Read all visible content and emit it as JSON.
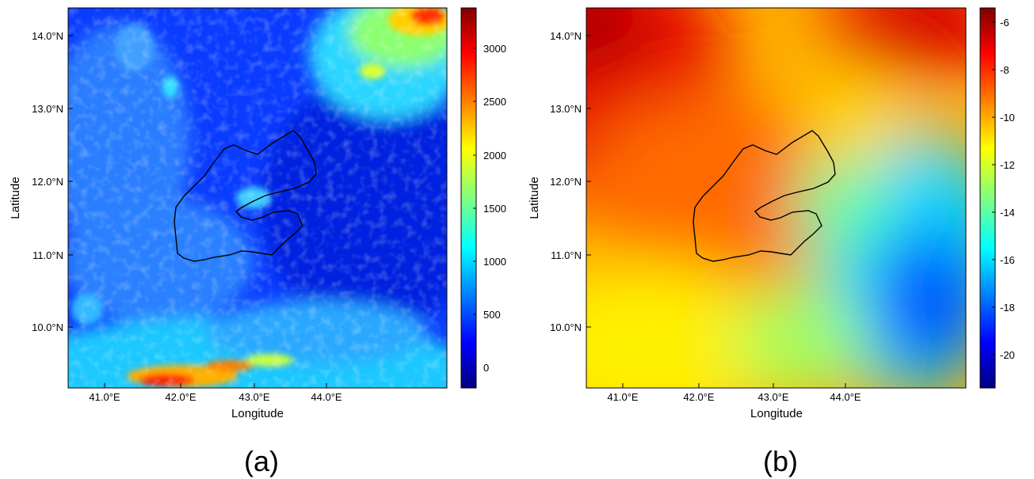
{
  "figure": {
    "panels": [
      {
        "id": "a",
        "label": "(a)",
        "xlabel": "Longitude",
        "ylabel": "Latitude",
        "x_ticks": [
          "41.0°E",
          "42.0°E",
          "43.0°E",
          "44.0°E"
        ],
        "y_ticks": [
          "14.0°N",
          "13.0°N",
          "12.0°N",
          "11.0°N",
          "10.0°N"
        ],
        "colorbar": {
          "ticks": [
            "3000",
            "2500",
            "2000",
            "1500",
            "1000",
            "500",
            "0"
          ],
          "range": [
            -150,
            3400
          ],
          "colormap": "jet"
        }
      },
      {
        "id": "b",
        "label": "(b)",
        "xlabel": "Longitude",
        "ylabel": "Latitude",
        "x_ticks": [
          "41.0°E",
          "42.0°E",
          "43.0°E",
          "44.0°E"
        ],
        "y_ticks": [
          "14.0°N",
          "13.0°N",
          "12.0°N",
          "11.0°N",
          "10.0°N"
        ],
        "colorbar": {
          "ticks": [
            "-6",
            "-8",
            "-10",
            "-12",
            "-14",
            "-16",
            "-18",
            "-20"
          ],
          "range": [
            -21.4,
            -5.4
          ],
          "colormap": "jet"
        }
      }
    ],
    "map_extent": {
      "lon": [
        40.5,
        44.9
      ],
      "lat": [
        9.2,
        14.4
      ]
    }
  },
  "chart_data": [
    {
      "type": "heatmap",
      "title": "",
      "xlabel": "Longitude",
      "ylabel": "Latitude",
      "xlim": [
        40.5,
        44.9
      ],
      "ylim": [
        9.2,
        14.4
      ],
      "x_tick_values": [
        41.0,
        42.0,
        43.0,
        44.0
      ],
      "y_tick_values": [
        10.0,
        11.0,
        12.0,
        13.0,
        14.0
      ],
      "colorbar_range": [
        -150,
        3400
      ],
      "colorbar_tick_values": [
        0,
        500,
        1000,
        1500,
        2000,
        2500,
        3000
      ],
      "description_values": {
        "high_regions": [
          {
            "lon": 44.4,
            "lat": 14.1,
            "value": 3100
          },
          {
            "lon": 41.9,
            "lat": 9.3,
            "value": 3000
          },
          {
            "lon": 43.7,
            "lat": 13.5,
            "value": 2200
          }
        ],
        "low_regions": [
          {
            "lon": 44.3,
            "lat": 11.5,
            "value": -150
          }
        ]
      }
    },
    {
      "type": "heatmap",
      "title": "",
      "xlabel": "Longitude",
      "ylabel": "Latitude",
      "xlim": [
        40.5,
        44.9
      ],
      "ylim": [
        9.2,
        14.4
      ],
      "x_tick_values": [
        41.0,
        42.0,
        43.0,
        44.0
      ],
      "y_tick_values": [
        10.0,
        11.0,
        12.0,
        13.0,
        14.0
      ],
      "colorbar_range": [
        -21.4,
        -5.4
      ],
      "colorbar_tick_values": [
        -20,
        -18,
        -16,
        -14,
        -12,
        -10,
        -8,
        -6
      ],
      "description_values": {
        "high_regions": [
          {
            "lon": 40.6,
            "lat": 14.3,
            "value": -5.8
          },
          {
            "lon": 44.1,
            "lat": 14.3,
            "value": -6.5
          }
        ],
        "low_regions": [
          {
            "lon": 44.6,
            "lat": 10.4,
            "value": -21.0
          }
        ]
      }
    }
  ]
}
